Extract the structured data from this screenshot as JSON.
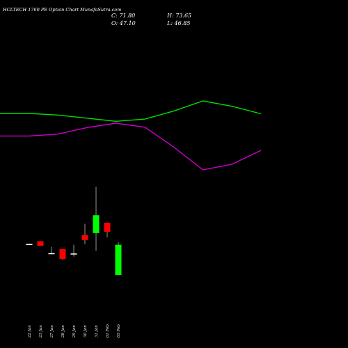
{
  "header": {
    "title": "HCLTECH 1760  PE Option  Chart MunafaSutra.com",
    "close_text": "C: 71.80",
    "high_text": "H: 73.65",
    "open_text": "O: 47.10",
    "low_text": "L: 46.85"
  },
  "colors": {
    "background": "#000000",
    "bullish": "#00ff00",
    "bearish": "#ff0000",
    "doji": "#ffffff",
    "line_upper": "#00dd00",
    "line_lower": "#cc00cc",
    "text": "#ffffff"
  },
  "chart_data": {
    "type": "candlestick",
    "title": "HCLTECH 1760  PE Option  Chart MunafaSutra.com",
    "x_labels": [
      "22 Jan",
      "23 Jan",
      "27 Jan",
      "28 Jan",
      "29 Jan",
      "30 Jan",
      "31 Jan",
      "01 Feb",
      "03 Feb"
    ],
    "candles": [
      {
        "date": "22 Jan",
        "open": 10.2,
        "high": 10.2,
        "low": 10.0,
        "close": 10.0
      },
      {
        "date": "23 Jan",
        "open": 12.0,
        "high": 12.0,
        "low": 9.0,
        "close": 9.0
      },
      {
        "date": "27 Jan",
        "open": 4.2,
        "high": 8.3,
        "low": 4.0,
        "close": 4.0
      },
      {
        "date": "28 Jan",
        "open": 6.8,
        "high": 6.8,
        "low": 0.0,
        "close": 0.5
      },
      {
        "date": "29 Jan",
        "open": 4.0,
        "high": 9.8,
        "low": 2.0,
        "close": 3.8
      },
      {
        "date": "30 Jan",
        "open": 15.9,
        "high": 23.4,
        "low": 10.0,
        "close": 12.8
      },
      {
        "date": "31 Jan",
        "open": 17.3,
        "high": 47.6,
        "low": 5.7,
        "close": 29.0
      },
      {
        "date": "01 Feb",
        "open": 24.1,
        "high": 24.1,
        "low": 14.5,
        "close": 18.2
      },
      {
        "date": "03 Feb",
        "open": -10.0,
        "high": 11.5,
        "low": -10.0,
        "close": 9.7
      }
    ],
    "lines": [
      {
        "color": "#00dd00",
        "values": [
          28,
          28,
          27.5,
          26.5,
          25.5,
          26.2,
          28.8,
          32,
          30.3,
          27.9
        ]
      },
      {
        "color": "#cc00cc",
        "values": [
          20.8,
          20.8,
          21.4,
          23.5,
          24.9,
          23.6,
          17.2,
          10,
          11.8,
          16.2
        ]
      }
    ]
  }
}
